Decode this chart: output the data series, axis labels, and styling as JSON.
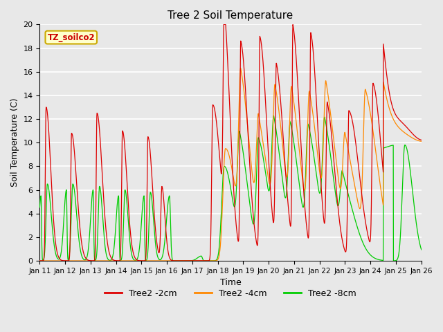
{
  "title": "Tree 2 Soil Temperature",
  "xlabel": "Time",
  "ylabel": "Soil Temperature (C)",
  "annotation": "TZ_soilco2",
  "annotation_color": "#cc0000",
  "annotation_bg": "#ffffcc",
  "annotation_border": "#ccaa00",
  "ylim": [
    0,
    20
  ],
  "legend": [
    "Tree2 -2cm",
    "Tree2 -4cm",
    "Tree2 -8cm"
  ],
  "colors": [
    "#dd0000",
    "#ff8800",
    "#00cc00"
  ],
  "bg_color": "#e8e8e8",
  "grid_color": "#ffffff",
  "tick_labels": [
    "Jan 11",
    "Jan 12",
    "Jan 13",
    "Jan 14",
    "Jan 15",
    "Jan 16",
    "Jan 17",
    "Jan 18",
    "Jan 19",
    "Jan 20",
    "Jan 21",
    "Jan 22",
    "Jan 23",
    "Jan 24",
    "Jan 25",
    "Jan 26"
  ],
  "figsize": [
    6.4,
    4.8
  ],
  "dpi": 100
}
